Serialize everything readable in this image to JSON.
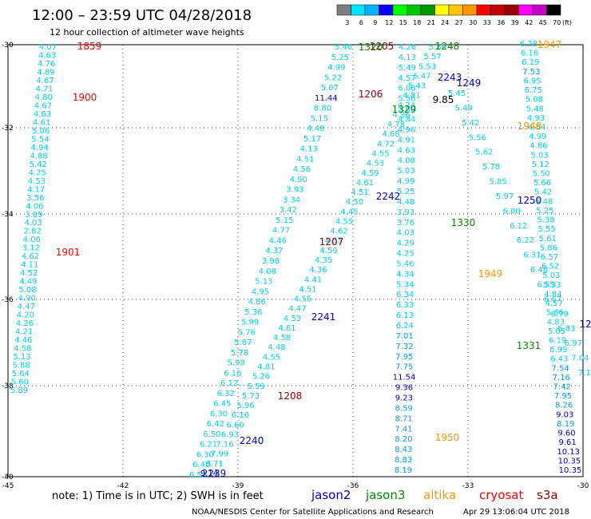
{
  "title": "12:00 – 23:59 UTC 04/28/2018",
  "subtitle": "12 hour collection of altimeter wave heights",
  "color_scale": {
    "labels": [
      "3",
      "6",
      "9",
      "12",
      "15",
      "18",
      "21",
      "24",
      "27",
      "30",
      "33",
      "36",
      "39",
      "42",
      "45",
      "70"
    ],
    "unit": "(ft)",
    "colors": [
      "#7f7f7f",
      "#00e5ff",
      "#00b2ff",
      "#0000ff",
      "#00ff00",
      "#00c800",
      "#009600",
      "#ffff00",
      "#ffc800",
      "#ff9600",
      "#ff0000",
      "#c80000",
      "#960000",
      "#ff00ff",
      "#c800c8",
      "#000000"
    ]
  },
  "axes": {
    "lon_labels": [
      "-45",
      "-42",
      "-39",
      "-36",
      "-33",
      "-30"
    ],
    "lat_labels": [
      "-30",
      "-32",
      "-34",
      "-36",
      "-38",
      "-40"
    ]
  },
  "satellite_colors": {
    "jason2": "#0000c8",
    "jason3": "#008c00",
    "altika": "#ff9600",
    "cryosat": "#ff0000",
    "s3a": "#960000",
    "wave": "#00d2e6"
  },
  "tracks": [
    {
      "sat": "cryosat",
      "values": [
        "4.07",
        "4.63",
        "4.76",
        "4.89",
        "4.67",
        "4.71",
        "4.80",
        "4.67",
        "4.63",
        "4.61",
        "5.06",
        "5.54",
        "4.94",
        "4.88",
        "5.42",
        "4.25",
        "4.53",
        "4.17",
        "3.56",
        "4.06",
        "3.89",
        "4.03",
        "2.82",
        "4.06",
        "3.12",
        "4.62",
        "4.11",
        "4.52",
        "4.49",
        "5.08",
        "4.90",
        "4.47",
        "4.20",
        "4.26",
        "4.21",
        "4.46",
        "4.58",
        "5.13",
        "5.88",
        "5.64",
        "5.60",
        "5.89"
      ]
    },
    {
      "sat": "s3a",
      "values": [
        "5.46",
        "5.25",
        "4.99",
        "5.22",
        "5.07",
        "11.44",
        "8.80",
        "5.15",
        "4.48",
        "5.17",
        "4.13",
        "4.51",
        "4.56",
        "4.90",
        "3.93",
        "3.34",
        "3.42",
        "5.15",
        "4.77",
        "4.46",
        "4.37",
        "3.98",
        "4.08",
        "5.13",
        "4.95",
        "4.86",
        "5.36",
        "5.99",
        "5.76",
        "5.87",
        "5.78",
        "5.98",
        "6.16",
        "6.12",
        "6.32",
        "6.45",
        "6.30",
        "6.42",
        "6.50",
        "6.21",
        "6.30",
        "6.40",
        "6.53"
      ]
    },
    {
      "sat": "jason2",
      "values": [
        "4.26",
        "4.13",
        "5.49",
        "4.57",
        "6.08",
        "5.56",
        "5.00",
        "4.84",
        "4.96",
        "4.91",
        "4.63",
        "4.08",
        "5.03",
        "4.99",
        "5.25",
        "4.48",
        "3.93",
        "3.76",
        "4.03",
        "4.29",
        "4.25",
        "5.46",
        "4.34",
        "5.34",
        "6.34",
        "6.33",
        "6.13",
        "6.24",
        "7.01",
        "7.32",
        "7.95",
        "7.75",
        "11.54",
        "9.36",
        "9.23",
        "8.59",
        "8.71",
        "7.41",
        "8.20",
        "8.43",
        "8.83",
        "8.19"
      ]
    },
    {
      "sat": "jason3",
      "values": [
        "5.80",
        "5.57",
        "5.53",
        "5.47",
        "5.43",
        "4.81",
        "4.74",
        "4.96",
        "4.78",
        "4.68",
        "4.72",
        "4.55",
        "4.53",
        "4.59",
        "4.61",
        "4.51",
        "4.50",
        "4.45",
        "4.55",
        "4.62",
        "4.55",
        "4.59",
        "4.35",
        "4.36",
        "4.41",
        "4.51",
        "4.55",
        "4.47",
        "4.53",
        "4.61",
        "4.58",
        "4.48",
        "4.55",
        "4.81",
        "5.26",
        "5.59",
        "5.73",
        "5.96",
        "6.16",
        "6.60",
        "6.93",
        "7.16",
        "7.99",
        "8.71",
        "9.14"
      ]
    },
    {
      "sat": "altika",
      "values": [
        "6.28",
        "6.16",
        "6.19",
        "7.53",
        "6.95",
        "6.75",
        "5.08",
        "5.48",
        "4.93",
        "4.84",
        "4.99",
        "4.86",
        "5.03",
        "5.12",
        "5.50",
        "5.66",
        "5.42",
        "5.48",
        "5.25",
        "5.38",
        "5.55",
        "5.61",
        "5.86",
        "6.57",
        "6.52",
        "5.03",
        "5.33",
        "4.84",
        "4.57",
        "5.86",
        "4.83",
        "5.05",
        "6.19",
        "6.99",
        "6.43",
        "7.54",
        "7.16",
        "7.42",
        "7.95",
        "8.26",
        "9.03",
        "8.19",
        "9.60",
        "9.61",
        "10.13",
        "10.35",
        "10.35"
      ]
    },
    {
      "sat": "jason2",
      "values": [
        "5.45",
        "5.49",
        "5.42",
        "5.56",
        "5.62",
        "5.78",
        "5.85",
        "5.97",
        "6.00",
        "6.12",
        "6.22",
        "6.31",
        "6.48",
        "6.55",
        "6.67",
        "6.79",
        "6.83",
        "6.97",
        "7.04",
        "7.15"
      ]
    }
  ],
  "time_labels": [
    {
      "text": "1859",
      "sat": "cryosat"
    },
    {
      "text": "1900",
      "sat": "cryosat"
    },
    {
      "text": "1901",
      "sat": "cryosat"
    },
    {
      "text": "1205",
      "sat": "s3a"
    },
    {
      "text": "1206",
      "sat": "s3a"
    },
    {
      "text": "1207",
      "sat": "s3a"
    },
    {
      "text": "1208",
      "sat": "s3a"
    },
    {
      "text": "1320",
      "sat": "jason3"
    },
    {
      "text": "1329",
      "sat": "jason3"
    },
    {
      "text": "1330",
      "sat": "jason3"
    },
    {
      "text": "1331",
      "sat": "jason3"
    },
    {
      "text": "1248",
      "sat": "jason3"
    },
    {
      "text": "2243",
      "sat": "jason2"
    },
    {
      "text": "1249",
      "sat": "jason2"
    },
    {
      "text": "2242",
      "sat": "jason2"
    },
    {
      "text": "2241",
      "sat": "jason2"
    },
    {
      "text": "2240",
      "sat": "jason2"
    },
    {
      "text": "2239",
      "sat": "jason2"
    },
    {
      "text": "1250",
      "sat": "jason2"
    },
    {
      "text": "9.85",
      "sat": "plain"
    },
    {
      "text": "1947",
      "sat": "altika"
    },
    {
      "text": "1948",
      "sat": "altika"
    },
    {
      "text": "1949",
      "sat": "altika"
    },
    {
      "text": "1950",
      "sat": "altika"
    },
    {
      "text": "12",
      "sat": "jason2"
    }
  ],
  "legend": {
    "note": "note: 1) Time is in UTC; 2) SWH is in feet",
    "items": [
      {
        "label": "jason2",
        "sat": "jason2"
      },
      {
        "label": "jason3",
        "sat": "jason3"
      },
      {
        "label": "altika",
        "sat": "altika"
      },
      {
        "label": "cryosat",
        "sat": "cryosat"
      },
      {
        "label": "s3a",
        "sat": "s3a"
      }
    ]
  },
  "credit": {
    "center": "NOAA/NESDIS Center for Satellite Applications and Research",
    "timestamp": "Apr 29 13:06:04 UTC 2018"
  }
}
